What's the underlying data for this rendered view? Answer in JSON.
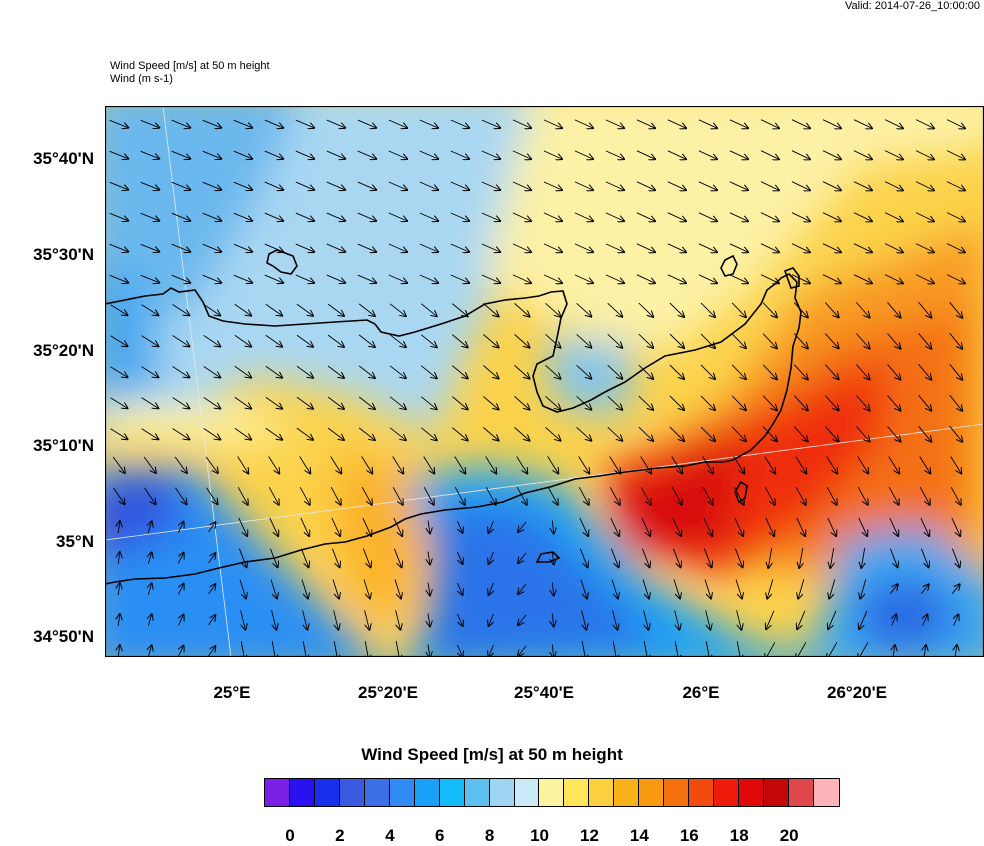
{
  "valid": "Valid: 2014-07-26_10:00:00",
  "titles": {
    "line1": "Wind Speed [m/s] at 50 m height",
    "line2": "Wind   (m s-1)"
  },
  "axes": {
    "lat_ticks": [
      "35°40'N",
      "35°30'N",
      "35°20'N",
      "35°10'N",
      "35°N",
      "34°50'N"
    ],
    "lon_ticks": [
      "25°E",
      "25°20'E",
      "25°40'E",
      "26°E",
      "26°20'E"
    ]
  },
  "colorbar": {
    "title": "Wind Speed [m/s] at 50 m height",
    "labels": [
      "0",
      "2",
      "4",
      "6",
      "8",
      "10",
      "12",
      "14",
      "16",
      "18",
      "20"
    ],
    "colors": [
      "#7b1fe6",
      "#2a12f0",
      "#1830ee",
      "#3a5ae0",
      "#3b6fe6",
      "#2f8bf3",
      "#1aa0f6",
      "#13bcf6",
      "#5ec0ef",
      "#9fd4f2",
      "#c9e9f7",
      "#fdf3a0",
      "#fde65a",
      "#fbcf3d",
      "#f9b21a",
      "#f89a10",
      "#f57110",
      "#f34a10",
      "#ee1a0a",
      "#e00808",
      "#c40707",
      "#e0474a",
      "#fcb4b8"
    ]
  }
}
